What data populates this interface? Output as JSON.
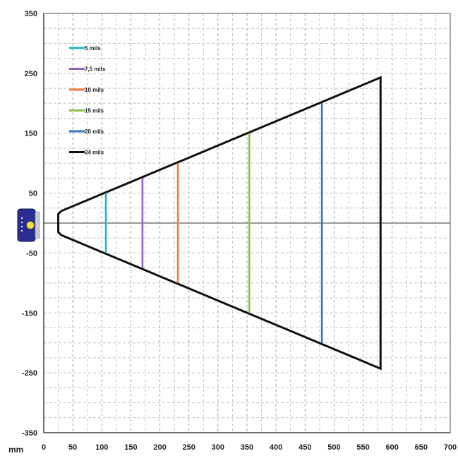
{
  "chart_data": {
    "type": "line",
    "xlabel": "mm",
    "ylabel": "",
    "xlim": [
      0,
      700
    ],
    "ylim": [
      -350,
      350
    ],
    "x_ticks": [
      0,
      50,
      100,
      150,
      200,
      250,
      300,
      350,
      400,
      450,
      500,
      550,
      600,
      650,
      700
    ],
    "y_ticks": [
      350,
      250,
      150,
      50,
      -50,
      -150,
      -250,
      -350
    ],
    "x_minor_step": 25,
    "y_minor_step": 25,
    "grid": true,
    "legend_position": "top-left",
    "outline": {
      "name": "24 mils",
      "color": "#111111",
      "points": [
        [
          30,
          20
        ],
        [
          580,
          243
        ],
        [
          580,
          -243
        ],
        [
          30,
          -20
        ],
        [
          25,
          -15
        ],
        [
          25,
          15
        ],
        [
          30,
          20
        ]
      ]
    },
    "series": [
      {
        "name": "5 mils",
        "color": "#23b6c6",
        "x": 107,
        "y": [
          -50,
          50
        ]
      },
      {
        "name": "7,5 mils",
        "color": "#8e63b8",
        "x": 170,
        "y": [
          -75,
          75
        ]
      },
      {
        "name": "10 mils",
        "color": "#f07f3a",
        "x": 231,
        "y": [
          -100,
          100
        ]
      },
      {
        "name": "15 mils",
        "color": "#8cc04d",
        "x": 354,
        "y": [
          -150,
          150
        ]
      },
      {
        "name": "20 mils",
        "color": "#2f7bbf",
        "x": 479,
        "y": [
          -200,
          200
        ]
      }
    ],
    "legend": [
      {
        "label": "5 mils",
        "color": "#23b6c6"
      },
      {
        "label": "7,5 mils",
        "color": "#8e63b8"
      },
      {
        "label": "10 mils",
        "color": "#f07f3a"
      },
      {
        "label": "15 mils",
        "color": "#8cc04d"
      },
      {
        "label": "20 mils",
        "color": "#2f7bbf"
      },
      {
        "label": "24 mils",
        "color": "#111111"
      }
    ]
  }
}
